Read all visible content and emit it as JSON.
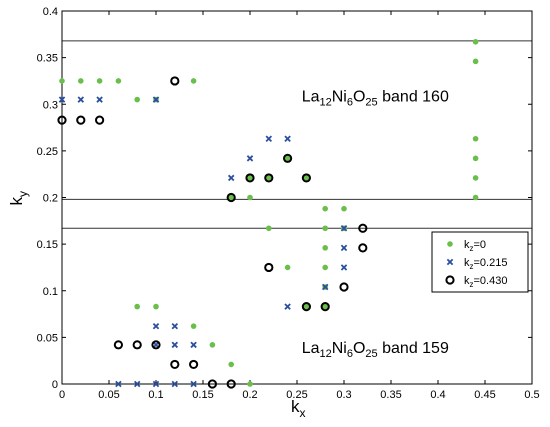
{
  "chart_data": {
    "type": "scatter",
    "title": "",
    "xlim": [
      0,
      0.5
    ],
    "ylim": [
      0,
      0.4
    ],
    "xticks": [
      "0",
      "0.05",
      "0.1",
      "0.15",
      "0.2",
      "0.25",
      "0.3",
      "0.35",
      "0.4",
      "0.45",
      "0.5"
    ],
    "yticks": [
      "0",
      "0.05",
      "0.1",
      "0.15",
      "0.2",
      "0.25",
      "0.3",
      "0.35",
      "0.4"
    ],
    "xlabel": {
      "main": "k",
      "sub": "x"
    },
    "ylabel": {
      "main": "k",
      "sub": "y"
    },
    "grid": false,
    "hlines": [
      0.368,
      0.198,
      0.167
    ],
    "annotations": [
      {
        "parts": [
          [
            "La",
            ""
          ],
          [
            "12",
            "sub"
          ],
          [
            "Ni",
            ""
          ],
          [
            "6",
            "sub"
          ],
          [
            "O",
            ""
          ],
          [
            "25",
            "sub"
          ],
          [
            " band 160",
            ""
          ]
        ],
        "x": 0.255,
        "y": 0.303
      },
      {
        "parts": [
          [
            "La",
            ""
          ],
          [
            "12",
            "sub"
          ],
          [
            "Ni",
            ""
          ],
          [
            "6",
            "sub"
          ],
          [
            "O",
            ""
          ],
          [
            "25",
            "sub"
          ],
          [
            " band 159",
            ""
          ]
        ],
        "x": 0.255,
        "y": 0.033
      }
    ],
    "legend": {
      "position": "right",
      "entries": [
        {
          "main": "k",
          "sub": "z",
          "rest": "=0"
        },
        {
          "main": "k",
          "sub": "z",
          "rest": "=0.215"
        },
        {
          "main": "k",
          "sub": "z",
          "rest": "=0.430"
        }
      ]
    },
    "series": [
      {
        "marker": "dot",
        "color": "#6abf4b",
        "points": [
          [
            0,
            0.325
          ],
          [
            0.02,
            0.325
          ],
          [
            0.04,
            0.325
          ],
          [
            0.06,
            0.325
          ],
          [
            0.14,
            0.325
          ],
          [
            0.08,
            0.305
          ],
          [
            0.1,
            0.305
          ],
          [
            0.08,
            0.083
          ],
          [
            0.1,
            0.083
          ],
          [
            0.14,
            0.062
          ],
          [
            0.16,
            0.042
          ],
          [
            0.18,
            0.021
          ],
          [
            0.2,
            0.0
          ],
          [
            0.18,
            0.2
          ],
          [
            0.2,
            0.2
          ],
          [
            0.2,
            0.221
          ],
          [
            0.22,
            0.221
          ],
          [
            0.24,
            0.242
          ],
          [
            0.26,
            0.221
          ],
          [
            0.22,
            0.167
          ],
          [
            0.24,
            0.125
          ],
          [
            0.28,
            0.188
          ],
          [
            0.28,
            0.167
          ],
          [
            0.28,
            0.146
          ],
          [
            0.28,
            0.125
          ],
          [
            0.28,
            0.104
          ],
          [
            0.28,
            0.083
          ],
          [
            0.3,
            0.188
          ],
          [
            0.3,
            0.167
          ],
          [
            0.26,
            0.083
          ],
          [
            0.44,
            0.367
          ],
          [
            0.44,
            0.346
          ],
          [
            0.44,
            0.263
          ],
          [
            0.44,
            0.242
          ],
          [
            0.44,
            0.221
          ],
          [
            0.44,
            0.2
          ]
        ]
      },
      {
        "marker": "x",
        "color": "#2a4f9e",
        "points": [
          [
            0,
            0.305
          ],
          [
            0.02,
            0.305
          ],
          [
            0.04,
            0.305
          ],
          [
            0.1,
            0.305
          ],
          [
            0.22,
            0.263
          ],
          [
            0.24,
            0.263
          ],
          [
            0.2,
            0.242
          ],
          [
            0.18,
            0.221
          ],
          [
            0.3,
            0.167
          ],
          [
            0.3,
            0.146
          ],
          [
            0.3,
            0.125
          ],
          [
            0.28,
            0.104
          ],
          [
            0.24,
            0.083
          ],
          [
            0.1,
            0.062
          ],
          [
            0.12,
            0.062
          ],
          [
            0.1,
            0.042
          ],
          [
            0.12,
            0.042
          ],
          [
            0.14,
            0.042
          ],
          [
            0.06,
            0.0
          ],
          [
            0.08,
            0.0
          ],
          [
            0.1,
            0.0
          ],
          [
            0.12,
            0.0
          ],
          [
            0.14,
            0.0
          ]
        ]
      },
      {
        "marker": "circle",
        "color": "#000000",
        "points": [
          [
            0,
            0.283
          ],
          [
            0.02,
            0.283
          ],
          [
            0.04,
            0.283
          ],
          [
            0.12,
            0.325
          ],
          [
            0.24,
            0.242
          ],
          [
            0.2,
            0.221
          ],
          [
            0.22,
            0.221
          ],
          [
            0.26,
            0.221
          ],
          [
            0.18,
            0.2
          ],
          [
            0.32,
            0.167
          ],
          [
            0.32,
            0.146
          ],
          [
            0.22,
            0.125
          ],
          [
            0.3,
            0.104
          ],
          [
            0.26,
            0.083
          ],
          [
            0.28,
            0.083
          ],
          [
            0.06,
            0.042
          ],
          [
            0.08,
            0.042
          ],
          [
            0.1,
            0.042
          ],
          [
            0.12,
            0.021
          ],
          [
            0.14,
            0.021
          ],
          [
            0.16,
            0.0
          ],
          [
            0.18,
            0.0
          ]
        ]
      }
    ]
  }
}
